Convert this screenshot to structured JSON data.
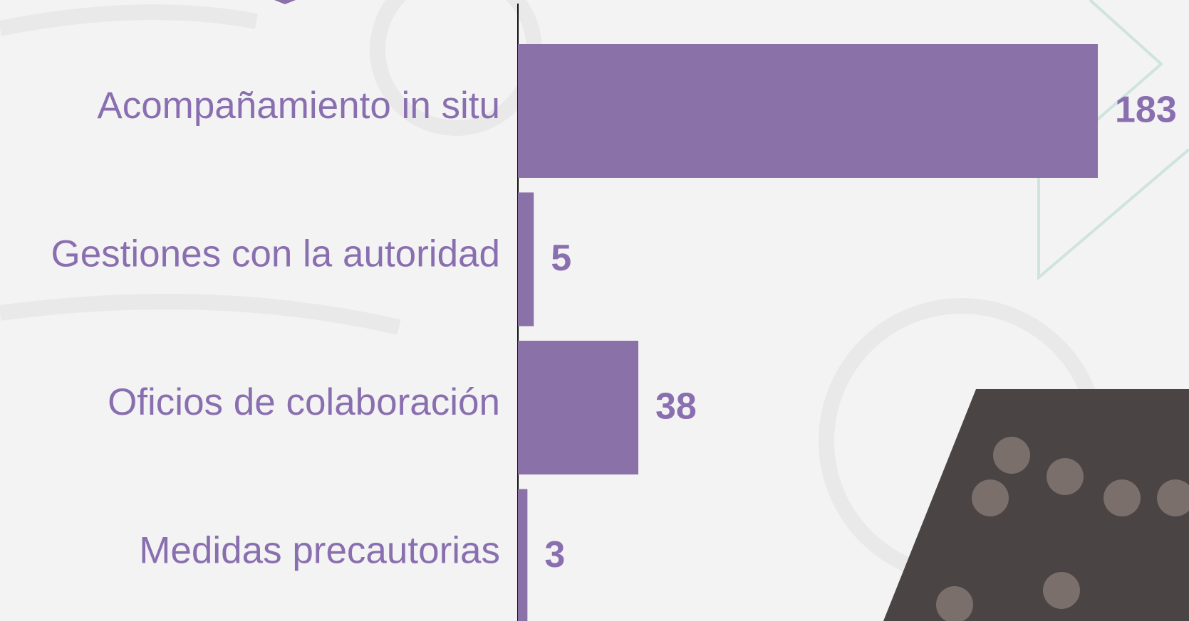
{
  "chart_data": {
    "type": "bar",
    "orientation": "horizontal",
    "categories": [
      "Acompañamiento in situ",
      "Gestiones con la autoridad",
      "Oficios de colaboración",
      "Medidas precautorias"
    ],
    "values": [
      183,
      5,
      38,
      3
    ],
    "color": "#8a71a8"
  }
}
